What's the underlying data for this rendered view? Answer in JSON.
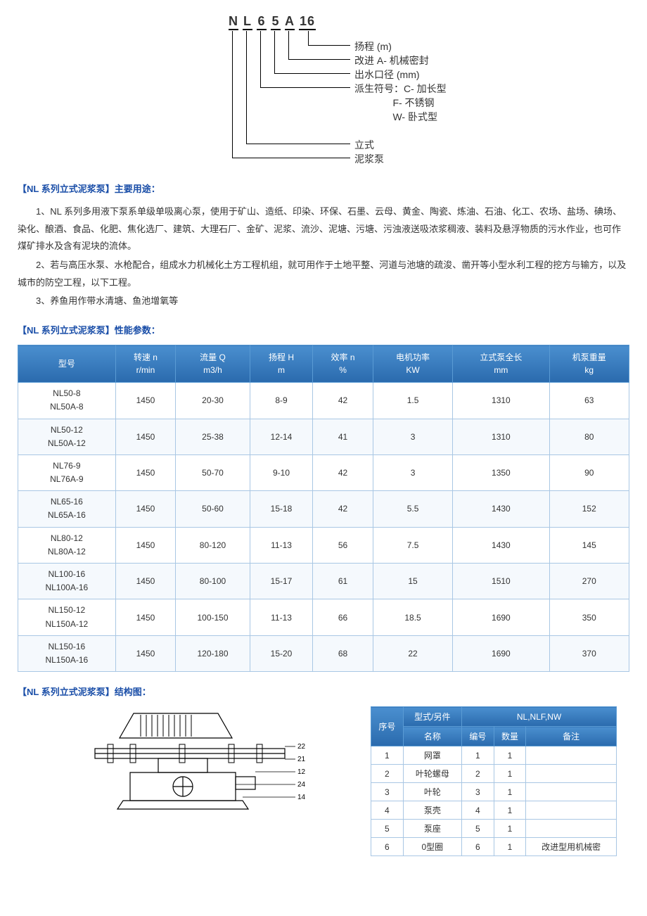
{
  "diagram": {
    "code_parts": [
      "N",
      "L",
      "6",
      "5",
      "A",
      "16"
    ],
    "labels": {
      "l1": "扬程 (m)",
      "l2": "改进 A- 机械密封",
      "l3": "出水口径 (mm)",
      "l4": "派生符号：C- 加长型",
      "l4b": "              F- 不锈钢",
      "l4c": "              W- 卧式型",
      "l5": "立式",
      "l6": "泥浆泵"
    }
  },
  "sections": {
    "uses_title": "【NL 系列立式泥浆泵】主要用途：",
    "spec_title": "【NL 系列立式泥浆泵】性能参数：",
    "struct_title": "【NL 系列立式泥浆泵】结构图："
  },
  "uses": {
    "p1": "1、NL 系列多用液下泵系单级单吸离心泵，使用于矿山、造纸、印染、环保、石墨、云母、黄金、陶瓷、炼油、石油、化工、农场、盐场、碘场、染化、酿酒、食品、化肥、焦化选厂、建筑、大理石厂、金矿、泥浆、流沙、泥塘、污塘、污浊液送吸浓浆稠液、装料及悬浮物质的污水作业，也可作煤矿排水及含有泥块的流体。",
    "p2": "2、若与高压水泵、水枪配合，组成水力机械化土方工程机组，就可用作于土地平整、河道与池塘的疏浚、凿开等小型水利工程的挖方与输方，以及城市的防空工程，以下工程。",
    "p3": "3、养鱼用作带水清塘、鱼池增氧等"
  },
  "spec_table": {
    "columns": [
      {
        "l1": "型号",
        "l2": ""
      },
      {
        "l1": "转速 n",
        "l2": "r/min"
      },
      {
        "l1": "流量 Q",
        "l2": "m3/h"
      },
      {
        "l1": "扬程 H",
        "l2": "m"
      },
      {
        "l1": "效率 n",
        "l2": "%"
      },
      {
        "l1": "电机功率",
        "l2": "KW"
      },
      {
        "l1": "立式泵全长",
        "l2": "mm"
      },
      {
        "l1": "机泵重量",
        "l2": "kg"
      }
    ],
    "rows": [
      {
        "model": [
          "NL50-8",
          "NL50A-8"
        ],
        "speed": "1450",
        "flow": "20-30",
        "head": "8-9",
        "eff": "42",
        "power": "1.5",
        "len": "1310",
        "wt": "63"
      },
      {
        "model": [
          "NL50-12",
          "NL50A-12"
        ],
        "speed": "1450",
        "flow": "25-38",
        "head": "12-14",
        "eff": "41",
        "power": "3",
        "len": "1310",
        "wt": "80"
      },
      {
        "model": [
          "NL76-9",
          "NL76A-9"
        ],
        "speed": "1450",
        "flow": "50-70",
        "head": "9-10",
        "eff": "42",
        "power": "3",
        "len": "1350",
        "wt": "90"
      },
      {
        "model": [
          "NL65-16",
          "NL65A-16"
        ],
        "speed": "1450",
        "flow": "50-60",
        "head": "15-18",
        "eff": "42",
        "power": "5.5",
        "len": "1430",
        "wt": "152"
      },
      {
        "model": [
          "NL80-12",
          "NL80A-12"
        ],
        "speed": "1450",
        "flow": "80-120",
        "head": "11-13",
        "eff": "56",
        "power": "7.5",
        "len": "1430",
        "wt": "145"
      },
      {
        "model": [
          "NL100-16",
          "NL100A-16"
        ],
        "speed": "1450",
        "flow": "80-100",
        "head": "15-17",
        "eff": "61",
        "power": "15",
        "len": "1510",
        "wt": "270"
      },
      {
        "model": [
          "NL150-12",
          "NL150A-12"
        ],
        "speed": "1450",
        "flow": "100-150",
        "head": "11-13",
        "eff": "66",
        "power": "18.5",
        "len": "1690",
        "wt": "350"
      },
      {
        "model": [
          "NL150-16",
          "NL150A-16"
        ],
        "speed": "1450",
        "flow": "120-180",
        "head": "15-20",
        "eff": "68",
        "power": "22",
        "len": "1690",
        "wt": "370"
      }
    ]
  },
  "parts_table": {
    "top_header": {
      "c1": "序号",
      "c2": "型式/另件",
      "c3": "NL,NLF,NW"
    },
    "sub_header": {
      "c2": "名称",
      "c3a": "编号",
      "c3b": "数量",
      "c3c": "备注"
    },
    "rows": [
      {
        "no": "1",
        "name": "网罩",
        "code": "1",
        "qty": "1",
        "note": ""
      },
      {
        "no": "2",
        "name": "叶轮螺母",
        "code": "2",
        "qty": "1",
        "note": ""
      },
      {
        "no": "3",
        "name": "叶轮",
        "code": "3",
        "qty": "1",
        "note": ""
      },
      {
        "no": "4",
        "name": "泵壳",
        "code": "4",
        "qty": "1",
        "note": ""
      },
      {
        "no": "5",
        "name": "泵座",
        "code": "5",
        "qty": "1",
        "note": ""
      },
      {
        "no": "6",
        "name": "0型圈",
        "code": "6",
        "qty": "1",
        "note": "改进型用机械密"
      }
    ]
  }
}
